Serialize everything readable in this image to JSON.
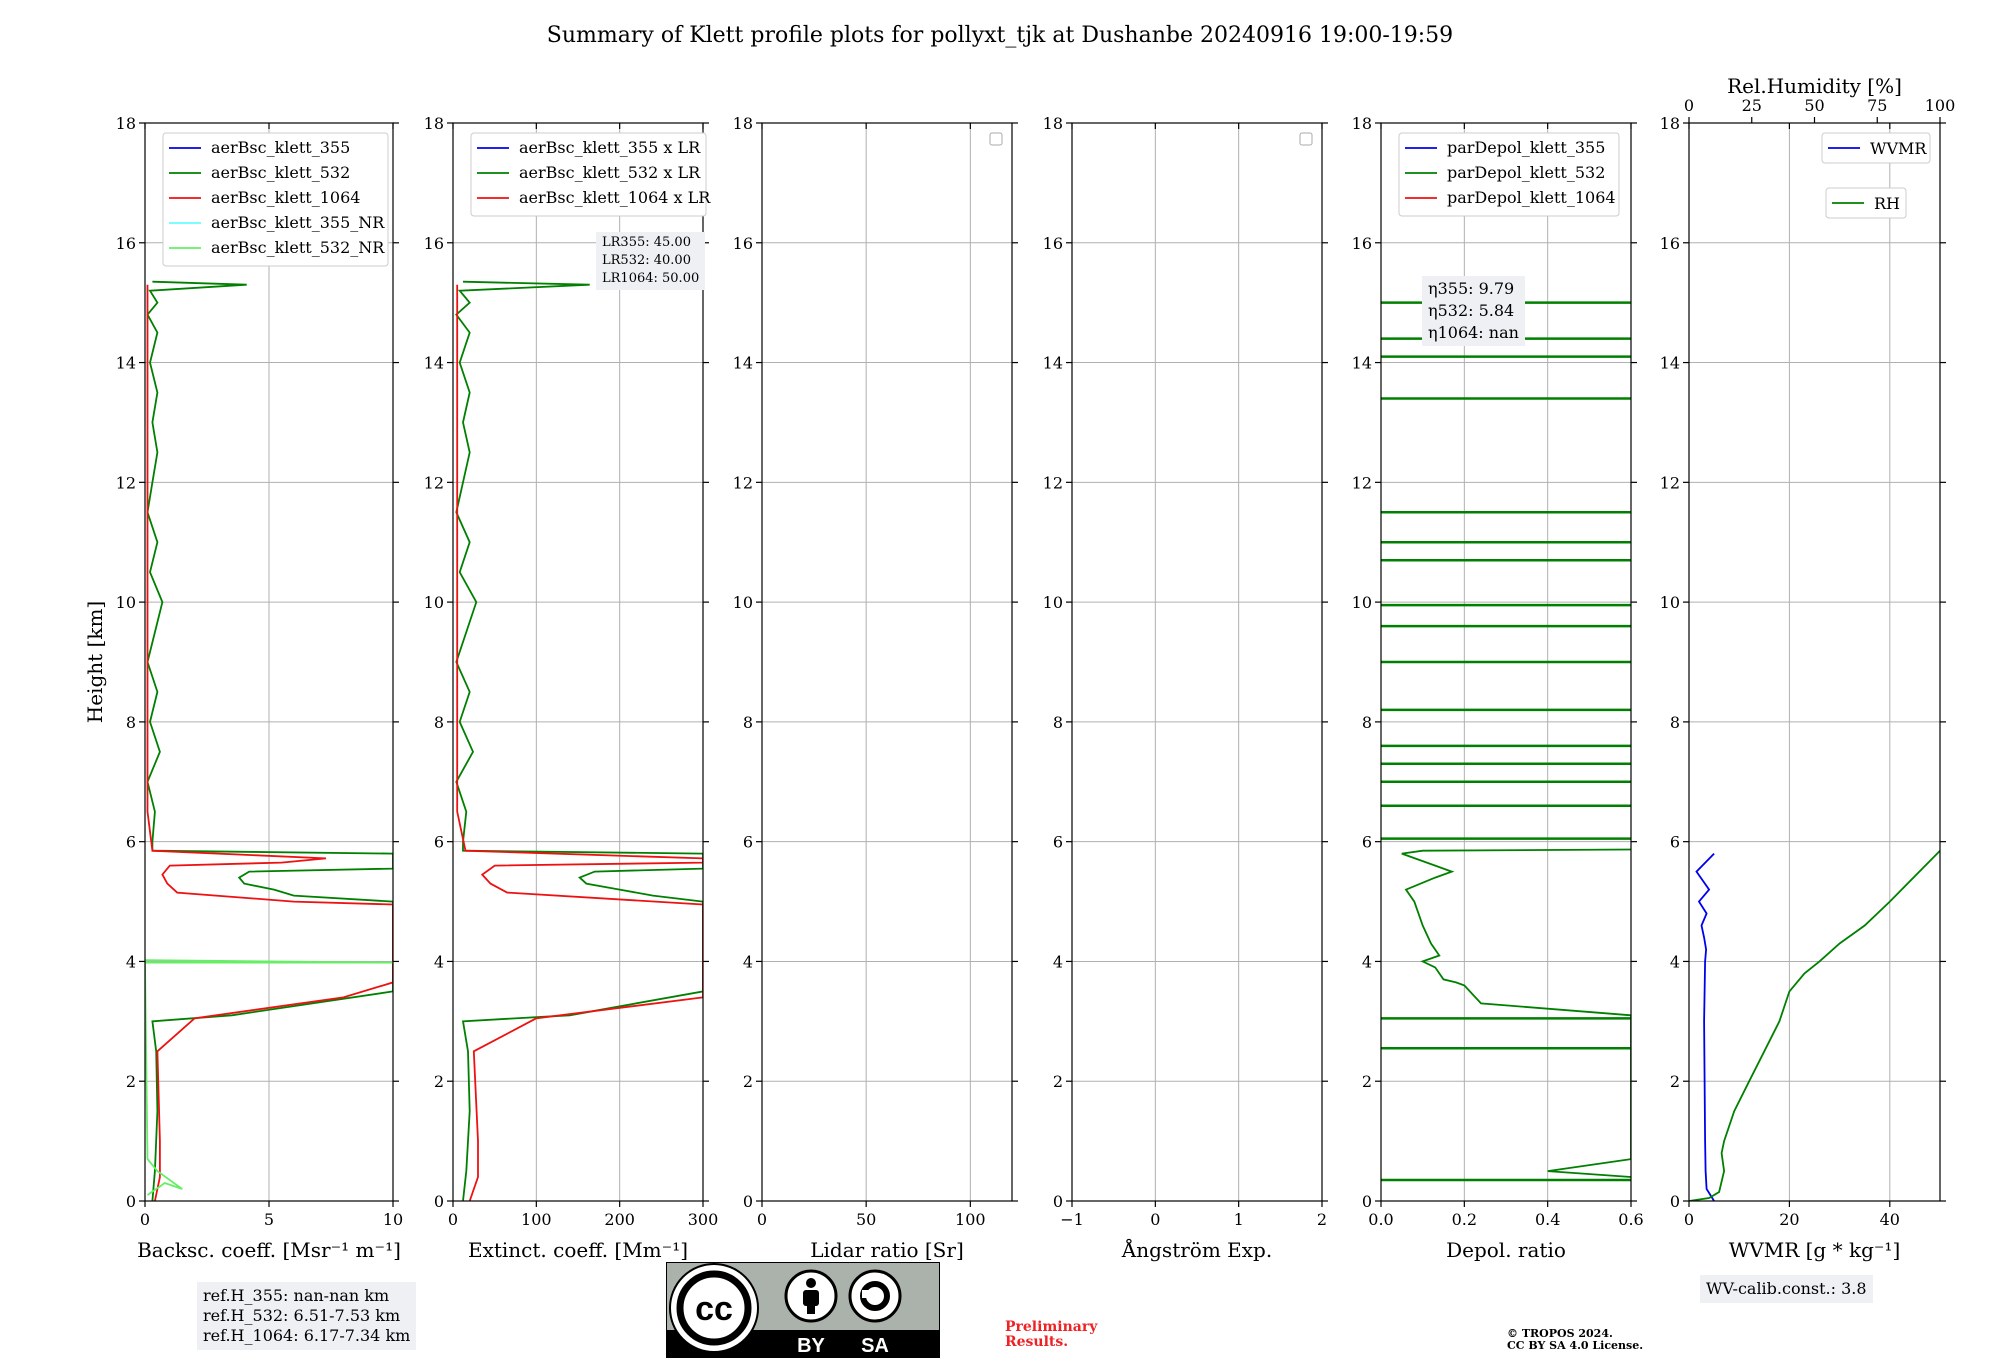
{
  "title": "Summary of Klett profile plots for pollyxt_tjk at Dushanbe 20240916 19:00-19:59",
  "y_axis_label": "Height [km]",
  "y_ticks": [
    "0",
    "2",
    "4",
    "6",
    "8",
    "10",
    "12",
    "14",
    "16",
    "18"
  ],
  "chart_data": [
    {
      "type": "line",
      "panel": "backscatter",
      "xlabel": "Backsc. coeff. [Msr⁻¹ m⁻¹]",
      "xlim": [
        0,
        10
      ],
      "ylim": [
        0,
        18
      ],
      "x_ticks": [
        "0",
        "5",
        "10"
      ],
      "legend": [
        "aerBsc_klett_355",
        "aerBsc_klett_532",
        "aerBsc_klett_1064",
        "aerBsc_klett_355_NR",
        "aerBsc_klett_532_NR"
      ],
      "series": [
        {
          "name": "aerBsc_klett_532",
          "color": "#008000",
          "x": [
            0.3,
            0.4,
            0.5,
            0.45,
            0.3,
            3.5,
            10,
            10,
            6,
            5.2,
            4,
            3.8,
            4.2,
            10,
            10,
            0.3,
            0.3,
            0.4,
            0.1,
            0.6,
            0.2,
            0.5,
            0.1,
            0.7,
            0.2,
            0.5,
            0.1,
            0.3,
            0.5,
            0.3,
            0.5,
            0.2,
            0.5,
            0.1,
            0.5,
            0.2,
            4.1,
            0.3
          ],
          "y": [
            0,
            0.5,
            1.5,
            2.5,
            3.0,
            3.1,
            3.5,
            5.0,
            5.1,
            5.2,
            5.3,
            5.4,
            5.5,
            5.55,
            5.8,
            5.85,
            6.0,
            6.5,
            7,
            7.5,
            8,
            8.5,
            9,
            10,
            10.5,
            11,
            11.5,
            12,
            12.5,
            13,
            13.5,
            14,
            14.5,
            14.8,
            15.0,
            15.2,
            15.3,
            15.35
          ]
        },
        {
          "name": "aerBsc_klett_1064",
          "color": "#ee1111",
          "x": [
            0.4,
            0.6,
            0.6,
            0.5,
            2,
            8,
            10,
            10,
            6,
            1.3,
            0.9,
            0.7,
            1.0,
            5.5,
            7.3,
            0.3,
            0.1,
            0.1,
            0.1,
            0.1
          ],
          "y": [
            0,
            0.4,
            1.0,
            2.5,
            3.05,
            3.4,
            3.65,
            4.95,
            5.0,
            5.15,
            5.3,
            5.45,
            5.6,
            5.65,
            5.72,
            5.85,
            6.5,
            10,
            14,
            15.3
          ]
        },
        {
          "name": "aerBsc_klett_532_NR",
          "color": "#66ee66",
          "x": [
            0.1,
            0.8,
            1.5,
            0.5,
            0.1,
            0,
            10,
            0
          ],
          "y": [
            0.1,
            0.3,
            0.2,
            0.5,
            0.7,
            3.98,
            3.98,
            4.02
          ]
        }
      ],
      "annotation": [
        "ref.H_355: nan-nan km",
        "ref.H_532: 6.51-7.53 km",
        "ref.H_1064: 6.17-7.34 km"
      ]
    },
    {
      "type": "line",
      "panel": "extinction",
      "xlabel": "Extinct. coeff. [Mm⁻¹]",
      "xlim": [
        0,
        300
      ],
      "ylim": [
        0,
        18
      ],
      "x_ticks": [
        "0",
        "100",
        "200",
        "300"
      ],
      "legend": [
        "aerBsc_klett_355 x LR",
        "aerBsc_klett_532 x LR",
        "aerBsc_klett_1064 x LR"
      ],
      "series": [
        {
          "name": "aerBsc_klett_532 x LR",
          "color": "#008000",
          "x": [
            12,
            16,
            20,
            18,
            12,
            140,
            300,
            300,
            240,
            200,
            160,
            152,
            170,
            300,
            300,
            12,
            12,
            16,
            4,
            24,
            8,
            20,
            4,
            28,
            8,
            20,
            4,
            12,
            20,
            12,
            20,
            8,
            20,
            4,
            20,
            8,
            164,
            12
          ],
          "y": [
            0,
            0.5,
            1.5,
            2.5,
            3.0,
            3.1,
            3.5,
            5.0,
            5.1,
            5.2,
            5.3,
            5.4,
            5.5,
            5.55,
            5.8,
            5.85,
            6.0,
            6.5,
            7,
            7.5,
            8,
            8.5,
            9,
            10,
            10.5,
            11,
            11.5,
            12,
            12.5,
            13,
            13.5,
            14,
            14.5,
            14.8,
            15.0,
            15.2,
            15.3,
            15.35
          ]
        },
        {
          "name": "aerBsc_klett_1064 x LR",
          "color": "#ee1111",
          "x": [
            20,
            30,
            30,
            25,
            100,
            300,
            300,
            300,
            65,
            45,
            35,
            50,
            300,
            300,
            15,
            5,
            5,
            5,
            5
          ],
          "y": [
            0,
            0.4,
            1.0,
            2.5,
            3.05,
            3.4,
            3.65,
            4.95,
            5.15,
            5.3,
            5.45,
            5.6,
            5.65,
            5.72,
            5.85,
            6.5,
            10,
            14,
            15.3
          ]
        }
      ],
      "annotation": [
        "LR355: 45.00",
        "LR532: 40.00",
        "LR1064: 50.00"
      ]
    },
    {
      "type": "line",
      "panel": "lidar_ratio",
      "xlabel": "Lidar ratio [Sr]",
      "xlim": [
        0,
        120
      ],
      "ylim": [
        0,
        18
      ],
      "x_ticks": [
        "0",
        "50",
        "100"
      ],
      "series": []
    },
    {
      "type": "line",
      "panel": "angstrom",
      "xlabel": "Ångström Exp.",
      "xlim": [
        -1,
        2
      ],
      "ylim": [
        0,
        18
      ],
      "x_ticks": [
        "−1",
        "0",
        "1",
        "2"
      ],
      "series": []
    },
    {
      "type": "line",
      "panel": "depolarization",
      "xlabel": "Depol. ratio",
      "xlim": [
        0,
        0.6
      ],
      "ylim": [
        0,
        18
      ],
      "x_ticks": [
        "0.0",
        "0.2",
        "0.4",
        "0.6"
      ],
      "legend": [
        "parDepol_klett_355",
        "parDepol_klett_532",
        "parDepol_klett_1064"
      ],
      "series": [
        {
          "name": "parDepol_klett_532",
          "color": "#008000",
          "x": [
            0.6,
            0.4,
            0.6,
            0.6,
            0.24,
            0.2,
            0.18,
            0.15,
            0.13,
            0.1,
            0.14,
            0.12,
            0.1,
            0.08,
            0.06,
            0.13,
            0.17,
            0.13,
            0.05,
            0.1,
            0.6
          ],
          "y": [
            0.4,
            0.5,
            0.7,
            3.1,
            3.3,
            3.6,
            3.65,
            3.7,
            3.9,
            4.0,
            4.1,
            4.3,
            4.6,
            5.0,
            5.2,
            5.4,
            5.5,
            5.6,
            5.8,
            5.85,
            5.87
          ]
        },
        {
          "name": "parDepol_klett_532_spikes",
          "color": "#008000",
          "x": [
            0.6,
            0.6,
            0.6,
            0.6,
            0.6,
            0.6,
            0.6,
            0.6,
            0.6,
            0.6,
            0.6,
            0.6,
            0.6,
            0.6,
            0.6,
            0.6,
            0.6,
            0.6,
            0.6
          ],
          "y": [
            0.35,
            2.55,
            3.05,
            6.05,
            6.6,
            7.0,
            7.3,
            7.6,
            8.2,
            9.0,
            9.6,
            9.95,
            10.7,
            11.0,
            11.5,
            13.4,
            14.1,
            14.4,
            15.0
          ]
        }
      ],
      "annotation": [
        "η355: 9.79",
        "η532: 5.84",
        "η1064: nan"
      ]
    },
    {
      "type": "line",
      "panel": "water_vapor",
      "xlabel": "WVMR [g * kg⁻¹]",
      "xlim": [
        0,
        50
      ],
      "ylim": [
        0,
        18
      ],
      "x_ticks": [
        "0",
        "20",
        "40"
      ],
      "top_axis": {
        "label": "Rel.Humidity [%]",
        "ticks": [
          "0",
          "25",
          "50",
          "75",
          "100"
        ],
        "lim": [
          0,
          100
        ]
      },
      "legend": [
        "WVMR",
        "RH"
      ],
      "series": [
        {
          "name": "WVMR",
          "color": "#0000ee",
          "x": [
            5,
            3.5,
            3.3,
            3.2,
            3.1,
            3.0,
            3.1,
            3.2,
            3.4,
            3.0,
            2.5,
            3.5,
            2.0,
            4.0,
            1.5,
            5
          ],
          "y": [
            0,
            0.2,
            0.5,
            1.0,
            2.0,
            3.0,
            3.5,
            4.0,
            4.2,
            4.4,
            4.6,
            4.8,
            5.0,
            5.2,
            5.5,
            5.8
          ]
        },
        {
          "name": "RH",
          "color": "#008000",
          "x": [
            0,
            8,
            12,
            14,
            13,
            14,
            18,
            24,
            30,
            36,
            40,
            46,
            52,
            60,
            70,
            80,
            100
          ],
          "y": [
            0,
            0.05,
            0.15,
            0.5,
            0.8,
            1.0,
            1.5,
            2.0,
            2.5,
            3.0,
            3.5,
            3.8,
            4.0,
            4.3,
            4.6,
            5.0,
            5.85
          ]
        }
      ],
      "annotation": [
        "WV-calib.const.: 3.8"
      ]
    }
  ],
  "license": {
    "by": "BY",
    "sa": "SA",
    "copyright_line1": "© TROPOS 2024.",
    "copyright_line2": "CC BY SA 4.0 License."
  },
  "preliminary": {
    "line1": "Preliminary",
    "line2": "Results."
  },
  "colors": {
    "blue": "#0000ee",
    "green": "#008000",
    "red": "#ee1111",
    "cyan": "#66ffff",
    "lightgreen": "#66ee66"
  }
}
